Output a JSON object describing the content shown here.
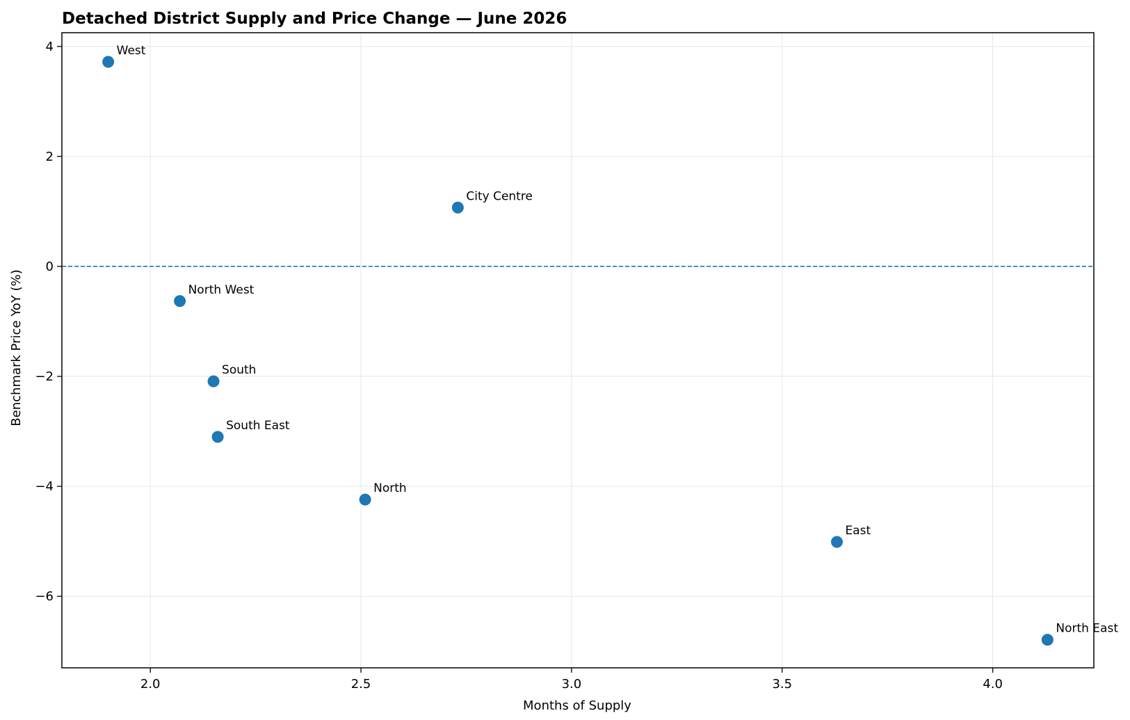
{
  "chart_data": {
    "type": "scatter",
    "title": "Detached District Supply and Price Change — June 2026",
    "xlabel": "Months of Supply",
    "ylabel": "Benchmark Price YoY (%)",
    "xlim": [
      1.79,
      4.24
    ],
    "ylim": [
      -7.3,
      4.25
    ],
    "xticks": [
      2.0,
      2.5,
      3.0,
      3.5,
      4.0
    ],
    "xtick_labels": [
      "2.0",
      "2.5",
      "3.0",
      "3.5",
      "4.0"
    ],
    "yticks": [
      4,
      2,
      0,
      -2,
      -4,
      -6
    ],
    "ytick_labels": [
      "4",
      "2",
      "0",
      "−2",
      "−4",
      "−6"
    ],
    "grid": true,
    "reference_line": {
      "y": 0,
      "style": "dashed",
      "color": "#1f77b4"
    },
    "marker_color": "#1f77b4",
    "points": [
      {
        "label": "West",
        "x": 1.9,
        "y": 3.72
      },
      {
        "label": "City Centre",
        "x": 2.73,
        "y": 1.07
      },
      {
        "label": "North West",
        "x": 2.07,
        "y": -0.63
      },
      {
        "label": "South",
        "x": 2.15,
        "y": -2.09
      },
      {
        "label": "South East",
        "x": 2.16,
        "y": -3.1
      },
      {
        "label": "North",
        "x": 2.51,
        "y": -4.24
      },
      {
        "label": "East",
        "x": 3.63,
        "y": -5.01
      },
      {
        "label": "North East",
        "x": 4.13,
        "y": -6.79
      }
    ]
  }
}
